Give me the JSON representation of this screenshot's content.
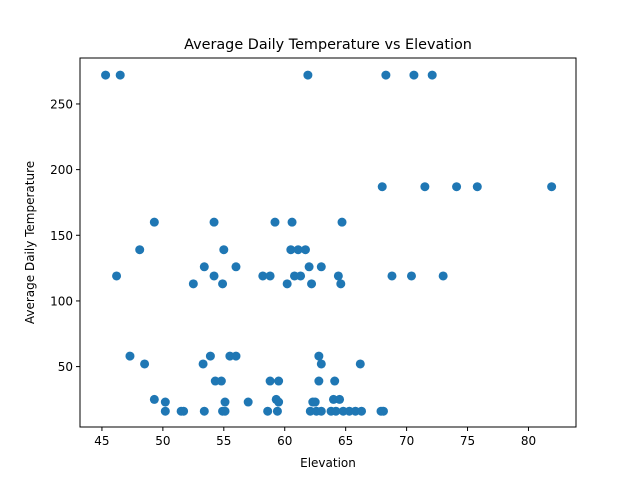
{
  "chart_data": {
    "type": "scatter",
    "title": "Average Daily Temperature vs Elevation",
    "xlabel": "Elevation",
    "ylabel": "Average Daily Temperature",
    "xlim": [
      43.2,
      83.9
    ],
    "ylim": [
      4,
      285
    ],
    "xticks": [
      45,
      50,
      55,
      60,
      65,
      70,
      75,
      80
    ],
    "yticks": [
      50,
      100,
      150,
      200,
      250
    ],
    "grid": false,
    "marker_color": "#1f77b4",
    "points": [
      [
        45.3,
        272
      ],
      [
        46.5,
        272
      ],
      [
        61.9,
        272
      ],
      [
        68.3,
        272
      ],
      [
        70.6,
        272
      ],
      [
        72.1,
        272
      ],
      [
        68.0,
        187
      ],
      [
        71.5,
        187
      ],
      [
        74.1,
        187
      ],
      [
        75.8,
        187
      ],
      [
        81.9,
        187
      ],
      [
        49.3,
        160
      ],
      [
        54.2,
        160
      ],
      [
        59.2,
        160
      ],
      [
        60.6,
        160
      ],
      [
        64.7,
        160
      ],
      [
        48.1,
        139
      ],
      [
        55.0,
        139
      ],
      [
        60.5,
        139
      ],
      [
        61.1,
        139
      ],
      [
        61.7,
        139
      ],
      [
        53.4,
        126
      ],
      [
        56.0,
        126
      ],
      [
        62.0,
        126
      ],
      [
        63.0,
        126
      ],
      [
        46.2,
        119
      ],
      [
        54.2,
        119
      ],
      [
        58.2,
        119
      ],
      [
        58.8,
        119
      ],
      [
        60.8,
        119
      ],
      [
        61.3,
        119
      ],
      [
        64.4,
        119
      ],
      [
        68.8,
        119
      ],
      [
        70.4,
        119
      ],
      [
        73.0,
        119
      ],
      [
        52.5,
        113
      ],
      [
        54.9,
        113
      ],
      [
        60.2,
        113
      ],
      [
        62.2,
        113
      ],
      [
        64.6,
        113
      ],
      [
        47.3,
        58
      ],
      [
        53.9,
        58
      ],
      [
        55.5,
        58
      ],
      [
        56.0,
        58
      ],
      [
        62.8,
        58
      ],
      [
        48.5,
        52
      ],
      [
        53.3,
        52
      ],
      [
        63.0,
        52
      ],
      [
        66.2,
        52
      ],
      [
        54.3,
        39
      ],
      [
        54.8,
        39
      ],
      [
        58.8,
        39
      ],
      [
        59.5,
        39
      ],
      [
        62.8,
        39
      ],
      [
        64.1,
        39
      ],
      [
        49.3,
        25
      ],
      [
        59.3,
        25
      ],
      [
        64.0,
        25
      ],
      [
        64.5,
        25
      ],
      [
        50.2,
        23
      ],
      [
        55.1,
        23
      ],
      [
        57.0,
        23
      ],
      [
        59.5,
        23
      ],
      [
        62.3,
        23
      ],
      [
        62.5,
        23
      ],
      [
        50.2,
        16
      ],
      [
        51.5,
        16
      ],
      [
        51.7,
        16
      ],
      [
        53.4,
        16
      ],
      [
        54.9,
        16
      ],
      [
        55.1,
        16
      ],
      [
        58.6,
        16
      ],
      [
        59.4,
        16
      ],
      [
        62.1,
        16
      ],
      [
        62.6,
        16
      ],
      [
        63.0,
        16
      ],
      [
        63.8,
        16
      ],
      [
        64.2,
        16
      ],
      [
        64.8,
        16
      ],
      [
        65.3,
        16
      ],
      [
        65.8,
        16
      ],
      [
        66.3,
        16
      ],
      [
        67.9,
        16
      ],
      [
        68.1,
        16
      ]
    ]
  }
}
